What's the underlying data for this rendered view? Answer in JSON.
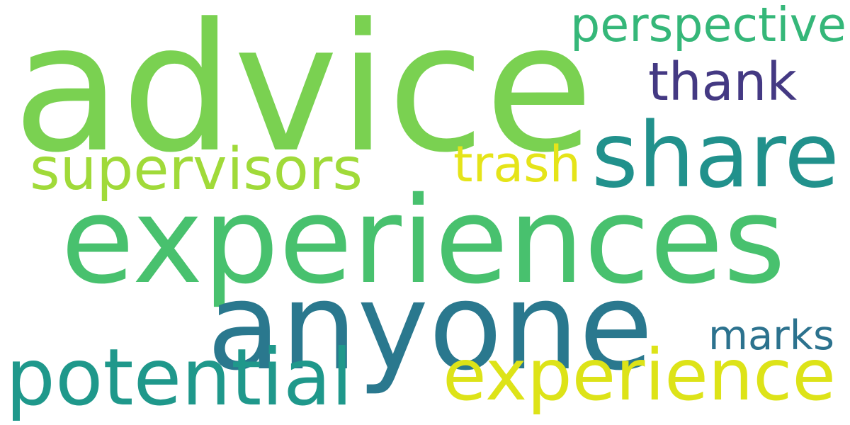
{
  "words": [
    {
      "text": "advice",
      "color": "#7ad151"
    },
    {
      "text": "experiences",
      "color": "#48c16e"
    },
    {
      "text": "anyone",
      "color": "#2a788e"
    },
    {
      "text": "share",
      "color": "#21918c"
    },
    {
      "text": "potential",
      "color": "#1f988b"
    },
    {
      "text": "experience",
      "color": "#dde318"
    },
    {
      "text": "supervisors",
      "color": "#a0da39"
    },
    {
      "text": "thank",
      "color": "#443983"
    },
    {
      "text": "perspective",
      "color": "#35b779"
    },
    {
      "text": "trash",
      "color": "#e5e419"
    },
    {
      "text": "marks",
      "color": "#2c728e"
    }
  ]
}
